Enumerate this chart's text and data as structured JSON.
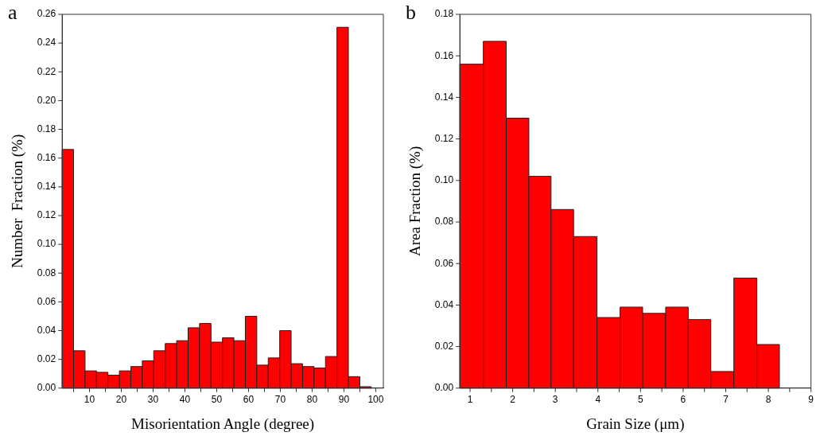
{
  "chart_data": [
    {
      "type": "histogram",
      "xlabel": "Misorientation Angle (degree)",
      "ylabel": "Number  Fraction (%)",
      "annotations": [
        "a"
      ],
      "color": "#ff0000",
      "bins": [
        1.4,
        5.0,
        8.6,
        12.2,
        15.8,
        19.4,
        23.0,
        26.6,
        30.2,
        33.8,
        37.4,
        41.0,
        44.6,
        48.2,
        51.8,
        55.4,
        59.0,
        62.6,
        66.2,
        69.8,
        73.4,
        77.0,
        80.6,
        84.2,
        87.8,
        91.4,
        95.0,
        98.6
      ],
      "values": [
        0.166,
        0.026,
        0.012,
        0.011,
        0.009,
        0.012,
        0.015,
        0.019,
        0.026,
        0.031,
        0.033,
        0.042,
        0.045,
        0.032,
        0.035,
        0.033,
        0.05,
        0.016,
        0.021,
        0.04,
        0.017,
        0.015,
        0.014,
        0.022,
        0.251,
        0.008,
        0.001
      ],
      "xlim": [
        1.4,
        102.4
      ],
      "xticks": [
        {
          "value": 5,
          "label": null
        },
        10,
        {
          "value": 15,
          "label": null
        },
        20,
        {
          "value": 25,
          "label": null
        },
        30,
        {
          "value": 35,
          "label": null
        },
        40,
        {
          "value": 45,
          "label": null
        },
        50,
        {
          "value": 55,
          "label": null
        },
        60,
        {
          "value": 65,
          "label": null
        },
        70,
        {
          "value": 75,
          "label": null
        },
        80,
        {
          "value": 85,
          "label": null
        },
        90,
        {
          "value": 95,
          "label": null
        },
        100
      ],
      "ylim": [
        0,
        0.26
      ],
      "yticks": [
        {
          "value": 0,
          "label": "0.00"
        },
        {
          "value": 0.02,
          "label": "0.02"
        },
        {
          "value": 0.04,
          "label": "0.04"
        },
        {
          "value": 0.06,
          "label": "0.06"
        },
        {
          "value": 0.08,
          "label": "0.08"
        },
        {
          "value": 0.1,
          "label": "0.10"
        },
        {
          "value": 0.12,
          "label": "0.12"
        },
        {
          "value": 0.14,
          "label": "0.14"
        },
        {
          "value": 0.16,
          "label": "0.16"
        },
        {
          "value": 0.18,
          "label": "0.18"
        },
        {
          "value": 0.2,
          "label": "0.20"
        },
        {
          "value": 0.22,
          "label": "0.22"
        },
        {
          "value": 0.24,
          "label": "0.24"
        },
        {
          "value": 0.26,
          "label": "0.26"
        }
      ],
      "grid": false,
      "legend": false
    },
    {
      "type": "histogram",
      "xlabel": "Grain Size (μm)",
      "ylabel": "Area Fraction (%)",
      "annotations": [
        "b"
      ],
      "color": "#ff0000",
      "bins": [
        0.76,
        1.31,
        1.85,
        2.38,
        2.9,
        3.43,
        3.98,
        4.52,
        5.05,
        5.59,
        6.12,
        6.65,
        7.19,
        7.73,
        8.26
      ],
      "values": [
        0.156,
        0.167,
        0.13,
        0.102,
        0.086,
        0.073,
        0.034,
        0.039,
        0.036,
        0.039,
        0.033,
        0.008,
        0.053,
        0.021
      ],
      "xlim": [
        0.76,
        9
      ],
      "xticks": [
        1,
        {
          "value": 1.5,
          "label": null
        },
        2,
        {
          "value": 2.5,
          "label": null
        },
        3,
        {
          "value": 3.5,
          "label": null
        },
        4,
        {
          "value": 4.5,
          "label": null
        },
        5,
        {
          "value": 5.5,
          "label": null
        },
        6,
        {
          "value": 6.5,
          "label": null
        },
        7,
        {
          "value": 7.5,
          "label": null
        },
        8,
        {
          "value": 8.5,
          "label": null
        },
        9
      ],
      "ylim": [
        0,
        0.18
      ],
      "yticks": [
        {
          "value": 0,
          "label": "0.00"
        },
        {
          "value": 0.02,
          "label": "0.02"
        },
        {
          "value": 0.04,
          "label": "0.04"
        },
        {
          "value": 0.06,
          "label": "0.06"
        },
        {
          "value": 0.08,
          "label": "0.08"
        },
        {
          "value": 0.1,
          "label": "0.10"
        },
        {
          "value": 0.12,
          "label": "0.12"
        },
        {
          "value": 0.14,
          "label": "0.14"
        },
        {
          "value": 0.16,
          "label": "0.16"
        },
        {
          "value": 0.18,
          "label": "0.18"
        }
      ],
      "grid": false,
      "legend": false
    }
  ]
}
